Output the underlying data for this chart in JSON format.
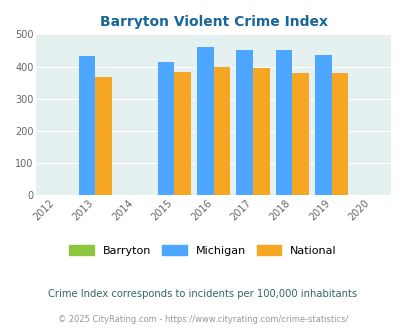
{
  "title": "Barryton Violent Crime Index",
  "subtitle": "Crime Index corresponds to incidents per 100,000 inhabitants",
  "footer": "© 2025 CityRating.com - https://www.cityrating.com/crime-statistics/",
  "years": [
    2013,
    2015,
    2016,
    2017,
    2018,
    2019
  ],
  "barryton": [
    0,
    0,
    0,
    0,
    0,
    0
  ],
  "michigan": [
    432,
    415,
    462,
    451,
    450,
    437
  ],
  "national": [
    367,
    384,
    398,
    394,
    381,
    381
  ],
  "bar_color_barryton": "#8dc63f",
  "bar_color_michigan": "#4da6ff",
  "bar_color_national": "#f5a623",
  "bg_color": "#e5f0f0",
  "title_color": "#1a6699",
  "xlim": [
    2011.5,
    2020.5
  ],
  "ylim": [
    0,
    500
  ],
  "xticks": [
    2012,
    2013,
    2014,
    2015,
    2016,
    2017,
    2018,
    2019,
    2020
  ],
  "yticks": [
    0,
    100,
    200,
    300,
    400,
    500
  ],
  "bar_width": 0.42,
  "subtitle_color": "#336666",
  "footer_color": "#999999",
  "grid_color": "#ffffff",
  "legend_labels": [
    "Barryton",
    "Michigan",
    "National"
  ]
}
